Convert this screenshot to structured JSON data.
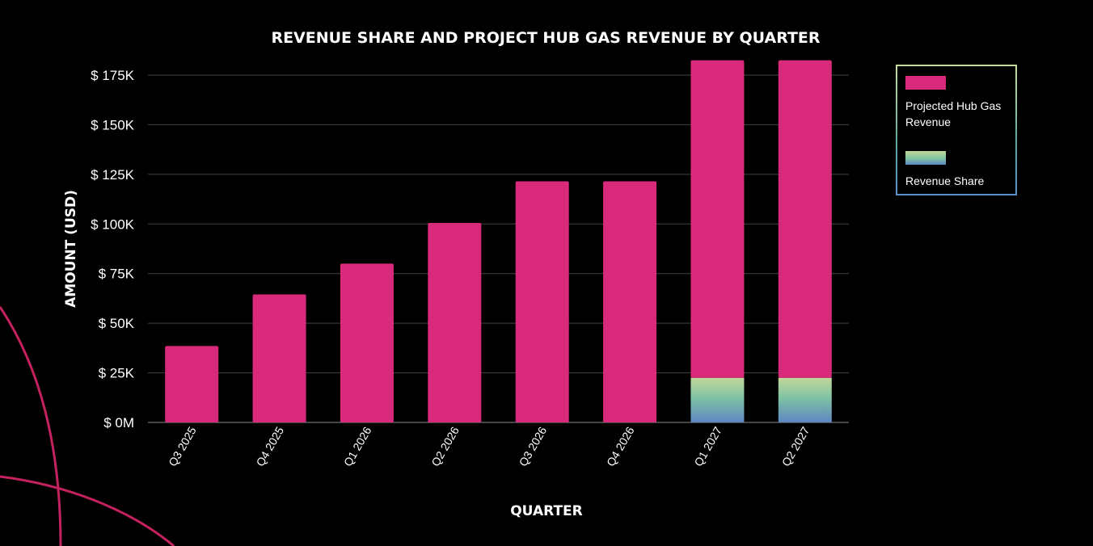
{
  "colors": {
    "background": "#000000",
    "hub_gas": "#d9297a",
    "revenue_share_top": "#c2d79a",
    "revenue_share_mid": "#7fc3a3",
    "revenue_share_bottom": "#5e86c2",
    "grid": "#444444",
    "decorative_arc": "#c4215f"
  },
  "legend": {
    "items": [
      {
        "label": "Projected Hub Gas Revenue",
        "series": "hub_gas"
      },
      {
        "label": "Revenue Share",
        "series": "revenue_share"
      }
    ]
  },
  "chart_data": {
    "type": "bar",
    "stacked": true,
    "title": "REVENUE SHARE AND PROJECT HUB GAS REVENUE BY QUARTER",
    "xlabel": "QUARTER",
    "ylabel": "AMOUNT (USD)",
    "categories": [
      "Q3 2025",
      "Q4 2025",
      "Q1 2026",
      "Q2 2026",
      "Q3 2026",
      "Q4 2026",
      "Q1 2027",
      "Q2 2027"
    ],
    "series": [
      {
        "name": "Revenue Share",
        "key": "revenue_share",
        "values": [
          0,
          0,
          0,
          0,
          0,
          0,
          22500,
          22500
        ]
      },
      {
        "name": "Projected Hub Gas Revenue",
        "key": "hub_gas",
        "values": [
          38500,
          64500,
          80000,
          100500,
          121500,
          121500,
          160000,
          160000
        ]
      }
    ],
    "ylim": [
      0,
      175000
    ],
    "yticks": [
      0,
      25000,
      50000,
      75000,
      100000,
      125000,
      150000,
      175000
    ],
    "ytick_labels": [
      "$ 0M",
      "$ 25K",
      "$ 50K",
      "$ 75K",
      "$ 100K",
      "$ 125K",
      "$ 150K",
      "$ 175K"
    ],
    "grid": true,
    "legend_position": "right"
  }
}
